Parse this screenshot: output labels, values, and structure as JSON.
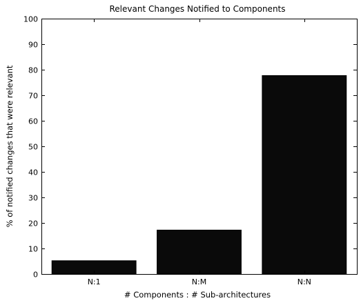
{
  "chart_data": {
    "type": "bar",
    "title": "Relevant Changes Notified to Components",
    "xlabel": "# Components : # Sub-architectures",
    "ylabel": "% of notified changes that were relevant",
    "categories": [
      "N:1",
      "N:M",
      "N:N"
    ],
    "values": [
      5.2,
      17.2,
      77.7
    ],
    "ylim": [
      0,
      100
    ],
    "yticks": [
      0,
      10,
      20,
      30,
      40,
      50,
      60,
      70,
      80,
      90,
      100
    ],
    "grid": false,
    "legend": "none",
    "bar_color": "#0a0a0a",
    "axis_color": "#000000"
  }
}
